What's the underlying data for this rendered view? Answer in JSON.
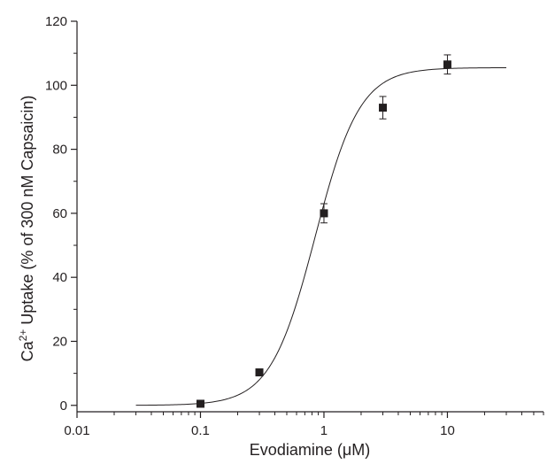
{
  "chart_data": {
    "type": "scatter",
    "xscale": "log",
    "xlim": [
      0.01,
      60
    ],
    "ylim": [
      -2,
      120
    ],
    "xlabel": "Evodiamine (μM)",
    "ylabel_main": "Ca",
    "ylabel_sup": "2+",
    "ylabel_rest": " Uptake (% of 300 nM Capsaicin)",
    "x_ticks": [
      {
        "value": 0.01,
        "label": "0.01"
      },
      {
        "value": 0.1,
        "label": "0.1"
      },
      {
        "value": 1,
        "label": "1"
      },
      {
        "value": 10,
        "label": "10"
      }
    ],
    "y_ticks": [
      {
        "value": 0,
        "label": "0"
      },
      {
        "value": 20,
        "label": "20"
      },
      {
        "value": 40,
        "label": "40"
      },
      {
        "value": 60,
        "label": "60"
      },
      {
        "value": 80,
        "label": "80"
      },
      {
        "value": 100,
        "label": "100"
      },
      {
        "value": 120,
        "label": "120"
      }
    ],
    "points": [
      {
        "x": 0.1,
        "y": 0.5,
        "err": 0
      },
      {
        "x": 0.3,
        "y": 10.3,
        "err": 0
      },
      {
        "x": 1,
        "y": 60,
        "err": 3
      },
      {
        "x": 3,
        "y": 93,
        "err": 3.5
      },
      {
        "x": 10,
        "y": 106.5,
        "err": 3
      }
    ],
    "fit": {
      "bottom": 0,
      "top": 105.5,
      "ec50": 0.85,
      "hill": 2.4,
      "x_start": 0.03,
      "x_end": 30
    },
    "color": "#231f20"
  }
}
